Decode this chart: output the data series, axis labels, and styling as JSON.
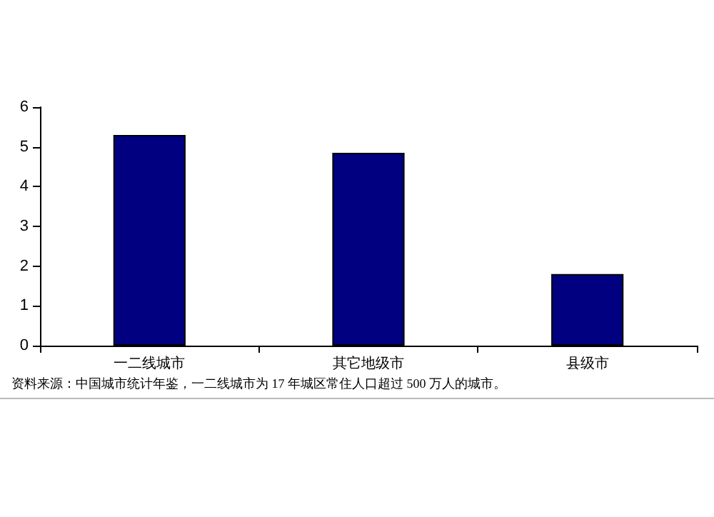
{
  "chart_data": {
    "type": "bar",
    "categories": [
      "一二线城市",
      "其它地级市",
      "县级市"
    ],
    "values": [
      5.3,
      4.85,
      1.8
    ],
    "color": "#000080",
    "ylim": [
      0,
      6
    ],
    "yticks": [
      0,
      1,
      2,
      3,
      4,
      5,
      6
    ],
    "grid": false,
    "annotations": [
      "资料来源：中国城市统计年鉴，一二线城市为 17 年城区常住人口超过 500 万人的城市。"
    ]
  }
}
